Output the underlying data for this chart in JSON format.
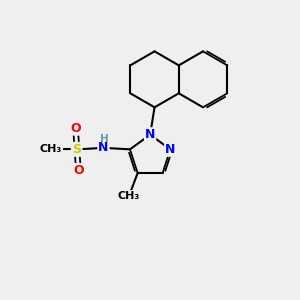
{
  "bg_color": "#efefef",
  "atom_colors": {
    "N": "#0000ff",
    "O": "#ff0000",
    "S": "#cccc00",
    "C": "#000000",
    "H": "#5f9ea0"
  },
  "bond_color": "#000000",
  "bond_lw": 1.5,
  "font_size_atom": 9,
  "font_size_small": 8
}
